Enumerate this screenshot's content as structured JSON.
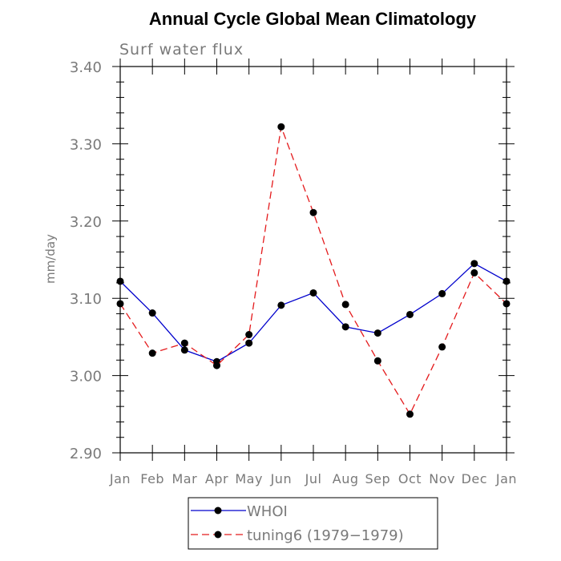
{
  "chart_data": {
    "type": "line",
    "title": "Annual Cycle Global Mean Climatology",
    "subtitle": "Surf water flux",
    "xlabel": "",
    "ylabel": "mm/day",
    "categories": [
      "Jan",
      "Feb",
      "Mar",
      "Apr",
      "May",
      "Jun",
      "Jul",
      "Aug",
      "Sep",
      "Oct",
      "Nov",
      "Dec",
      "Jan"
    ],
    "ylim": [
      2.9,
      3.4
    ],
    "yticks": [
      2.9,
      3.0,
      3.1,
      3.2,
      3.3,
      3.4
    ],
    "ytick_labels": [
      "2.90",
      "3.00",
      "3.10",
      "3.20",
      "3.30",
      "3.40"
    ],
    "grid": false,
    "legend_position": "bottom",
    "series": [
      {
        "name": "WHOI",
        "color": "#0000cc",
        "dash": "solid",
        "marker": "circle",
        "values": [
          3.122,
          3.081,
          3.033,
          3.018,
          3.042,
          3.091,
          3.107,
          3.063,
          3.055,
          3.079,
          3.106,
          3.145,
          3.122
        ]
      },
      {
        "name": "tuning6 (1979−1979)",
        "color": "#e41a1c",
        "dash": "dashed",
        "marker": "circle",
        "values": [
          3.093,
          3.029,
          3.042,
          3.013,
          3.053,
          3.322,
          3.211,
          3.092,
          3.019,
          2.95,
          3.037,
          3.133,
          3.093
        ]
      }
    ]
  }
}
